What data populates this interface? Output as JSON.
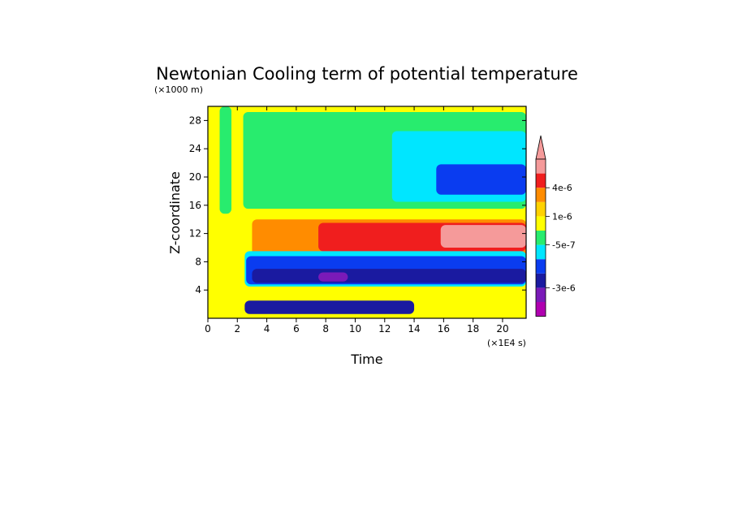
{
  "chart_data": {
    "type": "heatmap",
    "title": "Newtonian Cooling term of potential temperature",
    "xlabel": "Time",
    "ylabel": "Z-coordinate",
    "x_unit": "(×1E4 s)",
    "y_unit": "(×1000 m)",
    "xlim": [
      0,
      21.6
    ],
    "ylim": [
      0,
      30
    ],
    "x_ticks": [
      0,
      2,
      4,
      6,
      8,
      10,
      12,
      14,
      16,
      18,
      20
    ],
    "y_ticks": [
      4,
      8,
      12,
      16,
      20,
      24,
      28
    ],
    "x_tick_labels": [
      "0",
      "2",
      "4",
      "6",
      "8",
      "10",
      "12",
      "14",
      "16",
      "18",
      "20"
    ],
    "y_tick_labels": [
      "4",
      "8",
      "12",
      "16",
      "20",
      "24",
      "28"
    ],
    "levels": [
      {
        "name": "lt-4e-6",
        "color": "#b000b0"
      },
      {
        "name": "-4e-6",
        "color": "#7a1ab8"
      },
      {
        "name": "-3e-6",
        "color": "#1a1aa0"
      },
      {
        "name": "-2e-6",
        "color": "#0a3cf0"
      },
      {
        "name": "-1e-6",
        "color": "#00e6ff"
      },
      {
        "name": "-5e-7",
        "color": "#28ec6e"
      },
      {
        "name": "0",
        "color": "#ffff00"
      },
      {
        "name": "1e-6",
        "color": "#ffd200"
      },
      {
        "name": "2e-6",
        "color": "#ff8c00"
      },
      {
        "name": "4e-6",
        "color": "#f01e1e"
      },
      {
        "name": "gt-4e-6",
        "color": "#f59a9a"
      }
    ],
    "colorbar_labels": [
      "4e-6",
      "1e-6",
      "-5e-7",
      "-3e-6"
    ],
    "regions": [
      {
        "name": "background",
        "level": "0",
        "x": [
          0,
          21.6
        ],
        "z": [
          0,
          30
        ]
      },
      {
        "name": "upper-green-left",
        "level": "-5e-7",
        "x": [
          0.8,
          1.6
        ],
        "z": [
          14.8,
          30
        ]
      },
      {
        "name": "upper-green",
        "level": "-5e-7",
        "x": [
          2.4,
          21.6
        ],
        "z": [
          15.5,
          29.2
        ]
      },
      {
        "name": "upper-cyan",
        "level": "-1e-6",
        "x": [
          12.5,
          21.6
        ],
        "z": [
          16.5,
          26.5
        ]
      },
      {
        "name": "upper-blue",
        "level": "-2e-6",
        "x": [
          15.5,
          21.6
        ],
        "z": [
          17.5,
          21.8
        ]
      },
      {
        "name": "orange-layer",
        "level": "2e-6",
        "x": [
          3,
          21.6
        ],
        "z": [
          8.8,
          14
        ]
      },
      {
        "name": "red-core",
        "level": "4e-6",
        "x": [
          7.5,
          21.6
        ],
        "z": [
          9.5,
          13.5
        ]
      },
      {
        "name": "pink-core",
        "level": "gt-4e-6",
        "x": [
          15.8,
          21.6
        ],
        "z": [
          10,
          13.2
        ]
      },
      {
        "name": "lower-cyan",
        "level": "-1e-6",
        "x": [
          2.5,
          21.6
        ],
        "z": [
          4.5,
          9.5
        ]
      },
      {
        "name": "lower-blue",
        "level": "-2e-6",
        "x": [
          2.6,
          21.6
        ],
        "z": [
          4.8,
          8.8
        ]
      },
      {
        "name": "lower-navy",
        "level": "-3e-6",
        "x": [
          3,
          21.6
        ],
        "z": [
          5,
          7
        ]
      },
      {
        "name": "purple-core",
        "level": "-4e-6",
        "x": [
          7.5,
          9.5
        ],
        "z": [
          5.2,
          6.5
        ]
      },
      {
        "name": "bottom-navy",
        "level": "-3e-6",
        "x": [
          2.5,
          14
        ],
        "z": [
          0.6,
          2.5
        ]
      }
    ]
  }
}
